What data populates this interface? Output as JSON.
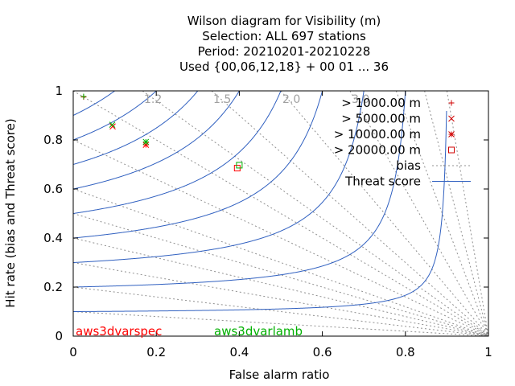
{
  "chart_data": {
    "type": "scatter",
    "title_lines": [
      "Wilson diagram  for Visibility (m)",
      "Selection: ALL    697 stations",
      "Period: 20210201-20210228",
      "Used {00,06,12,18} + 00 01 ... 36"
    ],
    "xlabel": "False alarm ratio",
    "ylabel": "Hit rate (bias and Threat score)",
    "xlim": [
      0,
      1
    ],
    "ylim": [
      0,
      1
    ],
    "x_ticks": [
      "0",
      "0.2",
      "0.4",
      "0.6",
      "0.8",
      "1"
    ],
    "y_ticks": [
      "0",
      "0.2",
      "0.4",
      "0.6",
      "0.8",
      "1"
    ],
    "bias_lines": [
      {
        "value": 1.2,
        "label": "1.2"
      },
      {
        "value": 1.5,
        "label": "1.5"
      },
      {
        "value": 2.0,
        "label": "2.0"
      },
      {
        "value": 3.0,
        "label": "3.0"
      },
      {
        "value": 1.0,
        "label": ""
      },
      {
        "value": 0.8,
        "label": ""
      },
      {
        "value": 0.6,
        "label": ""
      },
      {
        "value": 0.5,
        "label": ""
      },
      {
        "value": 0.4,
        "label": ""
      },
      {
        "value": 0.3,
        "label": ""
      },
      {
        "value": 0.2,
        "label": ""
      },
      {
        "value": 0.1,
        "label": ""
      },
      {
        "value": 4.5,
        "label": ""
      },
      {
        "value": 6.5,
        "label": ""
      },
      {
        "value": 10.0,
        "label": ""
      }
    ],
    "threat_scores": [
      0.1,
      0.2,
      0.3,
      0.4,
      0.5,
      0.6,
      0.7,
      0.8,
      0.9
    ],
    "legend": {
      "position": "top-right",
      "entries": [
        {
          "label": "> 1000.00 m",
          "marker": "plus"
        },
        {
          "label": "> 5000.00 m",
          "marker": "cross"
        },
        {
          "label": "> 10000.00 m",
          "marker": "star"
        },
        {
          "label": "> 20000.00 m",
          "marker": "square"
        },
        {
          "label": "bias",
          "marker": "dotted-line"
        },
        {
          "label": "Threat score",
          "marker": "solid-line"
        }
      ]
    },
    "series": [
      {
        "name": "aws3dvarspec",
        "color": "#ff0000",
        "points": [
          {
            "class": "> 1000.00 m",
            "x": 0.025,
            "y": 0.975
          },
          {
            "class": "> 5000.00 m",
            "x": 0.095,
            "y": 0.855
          },
          {
            "class": "> 10000.00 m",
            "x": 0.175,
            "y": 0.78
          },
          {
            "class": "> 20000.00 m",
            "x": 0.395,
            "y": 0.685
          }
        ]
      },
      {
        "name": "aws3dvarlamb",
        "color": "#00b000",
        "points": [
          {
            "class": "> 1000.00 m",
            "x": 0.025,
            "y": 0.977
          },
          {
            "class": "> 5000.00 m",
            "x": 0.094,
            "y": 0.862
          },
          {
            "class": "> 10000.00 m",
            "x": 0.175,
            "y": 0.792
          },
          {
            "class": "> 20000.00 m",
            "x": 0.4,
            "y": 0.697
          }
        ]
      }
    ],
    "colors": {
      "threat_line": "#3060c0",
      "bias_line": "#909090",
      "marker": "#d00000"
    }
  }
}
